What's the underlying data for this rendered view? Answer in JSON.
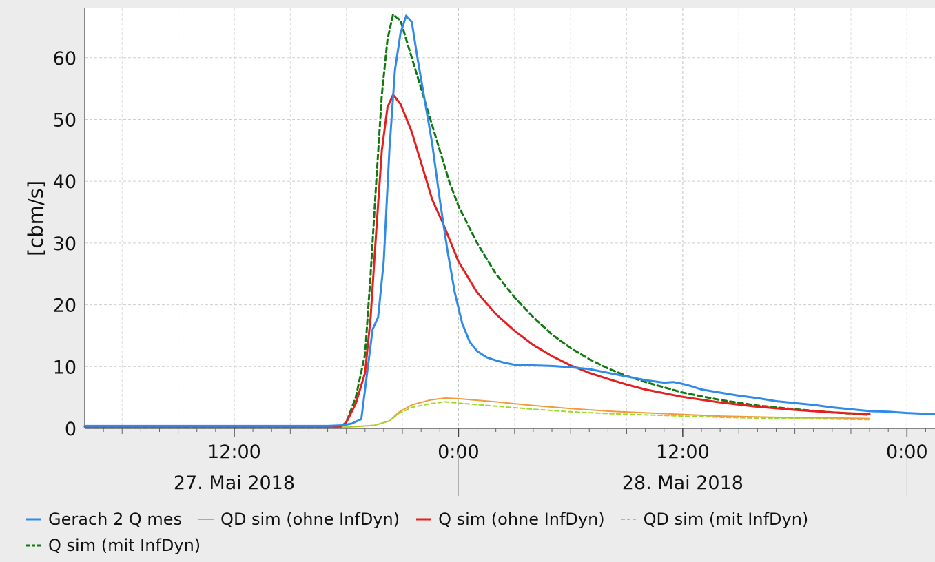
{
  "chart_data": {
    "type": "line",
    "ylabel": "[cbm/s]",
    "ylim": [
      0,
      68
    ],
    "y_ticks": [
      0,
      10,
      20,
      30,
      40,
      50,
      60
    ],
    "x_unit": "hours from 27. Mai 2018 00:00",
    "xlim": [
      4,
      49.5
    ],
    "x_ticks": [
      {
        "h": 12,
        "label": "12:00"
      },
      {
        "h": 24,
        "label": "0:00"
      },
      {
        "h": 36,
        "label": "12:00"
      },
      {
        "h": 48,
        "label": "0:00"
      }
    ],
    "day_labels": [
      {
        "h": 12,
        "label": "27. Mai 2018"
      },
      {
        "h": 36,
        "label": "28. Mai 2018"
      }
    ],
    "grid": true,
    "legend_position": "bottom",
    "series": [
      {
        "name": "Gerach 2 Q mes",
        "color": "#2f8ae8",
        "dash": "",
        "width": 3,
        "points": [
          [
            4,
            0.4
          ],
          [
            17,
            0.4
          ],
          [
            17.8,
            0.5
          ],
          [
            18.3,
            0.8
          ],
          [
            18.8,
            1.5
          ],
          [
            19.4,
            16
          ],
          [
            19.7,
            18
          ],
          [
            20,
            27
          ],
          [
            20.3,
            45
          ],
          [
            20.6,
            58
          ],
          [
            20.9,
            64
          ],
          [
            21.2,
            66.8
          ],
          [
            21.5,
            65.8
          ],
          [
            21.8,
            60
          ],
          [
            22.2,
            53
          ],
          [
            22.6,
            46
          ],
          [
            23.0,
            37
          ],
          [
            23.4,
            29
          ],
          [
            23.8,
            22
          ],
          [
            24.2,
            17
          ],
          [
            24.6,
            14
          ],
          [
            25,
            12.5
          ],
          [
            25.5,
            11.5
          ],
          [
            26,
            11
          ],
          [
            26.5,
            10.6
          ],
          [
            27,
            10.3
          ],
          [
            28,
            10.2
          ],
          [
            29,
            10.1
          ],
          [
            30,
            9.9
          ],
          [
            31,
            9.6
          ],
          [
            32,
            9.0
          ],
          [
            33,
            8.4
          ],
          [
            34,
            7.8
          ],
          [
            35,
            7.4
          ],
          [
            35.5,
            7.5
          ],
          [
            36,
            7.2
          ],
          [
            36.5,
            6.8
          ],
          [
            37,
            6.3
          ],
          [
            38,
            5.8
          ],
          [
            39,
            5.3
          ],
          [
            40,
            4.9
          ],
          [
            41,
            4.4
          ],
          [
            42,
            4.1
          ],
          [
            43,
            3.8
          ],
          [
            44,
            3.4
          ],
          [
            45,
            3.1
          ],
          [
            46,
            2.8
          ],
          [
            47,
            2.7
          ],
          [
            48,
            2.5
          ],
          [
            49.5,
            2.3
          ]
        ]
      },
      {
        "name": "QD sim (ohne InfDyn)",
        "color": "#f29a3c",
        "dash": "",
        "width": 2,
        "points": [
          [
            4,
            0.2
          ],
          [
            18,
            0.2
          ],
          [
            19.5,
            0.5
          ],
          [
            20.3,
            1.2
          ],
          [
            20.8,
            2.6
          ],
          [
            21.5,
            3.8
          ],
          [
            22.5,
            4.6
          ],
          [
            23.3,
            4.9
          ],
          [
            24,
            4.8
          ],
          [
            26,
            4.3
          ],
          [
            28,
            3.7
          ],
          [
            30,
            3.2
          ],
          [
            32,
            2.8
          ],
          [
            35,
            2.4
          ],
          [
            38,
            2.0
          ],
          [
            41,
            1.8
          ],
          [
            44,
            1.7
          ],
          [
            46,
            1.6
          ]
        ]
      },
      {
        "name": "Q sim (ohne InfDyn)",
        "color": "#e61e1e",
        "dash": "",
        "width": 3,
        "points": [
          [
            4,
            0.3
          ],
          [
            17.7,
            0.3
          ],
          [
            18,
            1
          ],
          [
            18.5,
            4
          ],
          [
            19,
            9
          ],
          [
            19.3,
            18
          ],
          [
            19.6,
            32
          ],
          [
            19.9,
            45
          ],
          [
            20.2,
            52
          ],
          [
            20.5,
            54
          ],
          [
            20.9,
            52.5
          ],
          [
            21.5,
            48
          ],
          [
            22,
            43
          ],
          [
            22.6,
            37
          ],
          [
            23.2,
            33
          ],
          [
            24,
            27
          ],
          [
            25,
            22
          ],
          [
            26,
            18.5
          ],
          [
            27,
            15.8
          ],
          [
            28,
            13.5
          ],
          [
            29,
            11.7
          ],
          [
            30,
            10.2
          ],
          [
            31,
            9.0
          ],
          [
            32,
            8.0
          ],
          [
            33,
            7.1
          ],
          [
            34,
            6.3
          ],
          [
            36,
            5.1
          ],
          [
            38,
            4.2
          ],
          [
            40,
            3.5
          ],
          [
            42,
            3.0
          ],
          [
            44,
            2.6
          ],
          [
            46,
            2.3
          ]
        ]
      },
      {
        "name": "QD sim (mit InfDyn)",
        "color": "#9bdc2a",
        "dash": "6,4",
        "width": 2,
        "points": [
          [
            4,
            0.2
          ],
          [
            18,
            0.2
          ],
          [
            19.5,
            0.5
          ],
          [
            20.3,
            1.2
          ],
          [
            20.8,
            2.4
          ],
          [
            21.5,
            3.4
          ],
          [
            22.5,
            4.0
          ],
          [
            23.3,
            4.3
          ],
          [
            24,
            4.1
          ],
          [
            26,
            3.6
          ],
          [
            28,
            3.1
          ],
          [
            30,
            2.7
          ],
          [
            32,
            2.4
          ],
          [
            35,
            2.1
          ],
          [
            38,
            1.8
          ],
          [
            41,
            1.6
          ],
          [
            44,
            1.5
          ],
          [
            46,
            1.4
          ]
        ]
      },
      {
        "name": "Q sim (mit InfDyn)",
        "color": "#0f7a0f",
        "dash": "7,5",
        "width": 3,
        "points": [
          [
            4,
            0.3
          ],
          [
            17.7,
            0.3
          ],
          [
            18,
            1
          ],
          [
            18.5,
            5
          ],
          [
            19,
            12
          ],
          [
            19.3,
            25
          ],
          [
            19.6,
            40
          ],
          [
            19.9,
            54
          ],
          [
            20.2,
            63
          ],
          [
            20.5,
            67
          ],
          [
            20.9,
            66
          ],
          [
            21.5,
            60
          ],
          [
            22,
            55
          ],
          [
            22.5,
            50
          ],
          [
            23,
            45
          ],
          [
            23.5,
            40
          ],
          [
            24,
            36
          ],
          [
            25,
            30
          ],
          [
            26,
            25
          ],
          [
            27,
            21.2
          ],
          [
            28,
            18
          ],
          [
            29,
            15.2
          ],
          [
            30,
            13
          ],
          [
            31,
            11.2
          ],
          [
            32,
            9.7
          ],
          [
            33,
            8.5
          ],
          [
            34,
            7.5
          ],
          [
            36,
            5.8
          ],
          [
            38,
            4.6
          ],
          [
            40,
            3.7
          ],
          [
            42,
            3.1
          ],
          [
            44,
            2.6
          ],
          [
            46,
            2.2
          ]
        ]
      }
    ]
  }
}
